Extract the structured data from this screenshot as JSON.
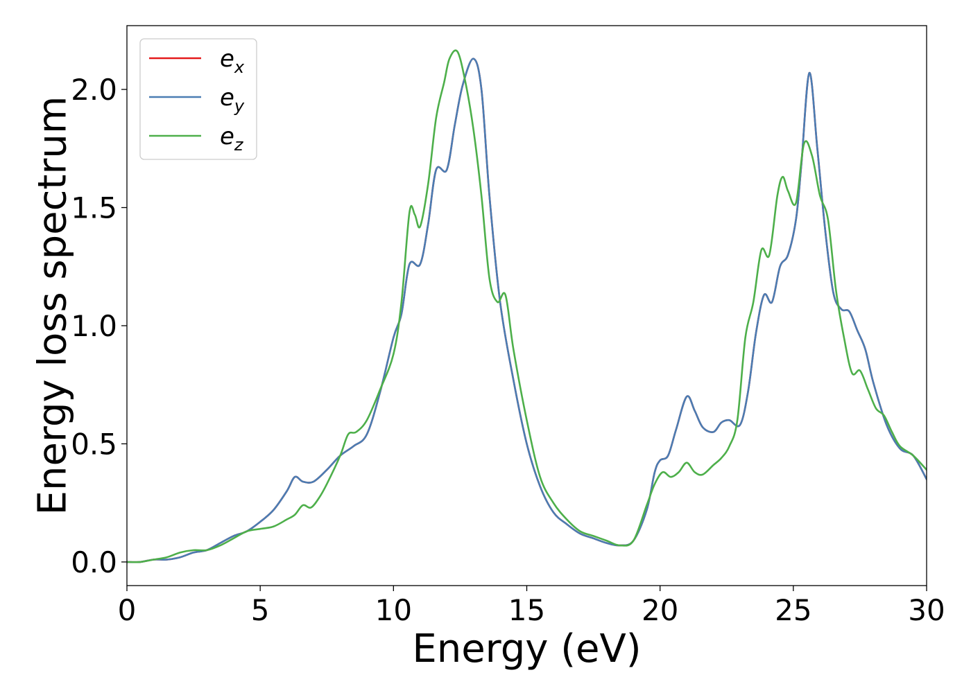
{
  "chart_data": {
    "type": "line",
    "title": "",
    "xlabel": "Energy (eV)",
    "ylabel": "Energy loss spectrum",
    "xlim": [
      0,
      30
    ],
    "ylim": [
      -0.1,
      2.27
    ],
    "xticks": [
      0,
      5,
      10,
      15,
      20,
      25,
      30
    ],
    "xtick_labels": [
      "0",
      "5",
      "10",
      "15",
      "20",
      "25",
      "30"
    ],
    "yticks": [
      0.0,
      0.5,
      1.0,
      1.5,
      2.0
    ],
    "ytick_labels": [
      "0.0",
      "0.5",
      "1.0",
      "1.5",
      "2.0"
    ],
    "grid": false,
    "legend_position": "top-left",
    "series": [
      {
        "name": "e_x",
        "legend_base": "e",
        "legend_sub": "x",
        "color": "#e41a1c",
        "x": [
          0,
          0.5,
          1,
          1.5,
          2,
          2.5,
          3,
          3.5,
          4,
          4.5,
          5,
          5.5,
          6,
          6.3,
          6.6,
          7,
          7.5,
          8,
          8.5,
          9,
          9.5,
          10,
          10.3,
          10.6,
          11,
          11.3,
          11.6,
          12,
          12.3,
          12.6,
          13,
          13.3,
          13.6,
          14,
          14.5,
          15,
          15.5,
          16,
          16.5,
          17,
          17.5,
          18,
          18.5,
          19,
          19.5,
          19.8,
          20,
          20.3,
          20.6,
          21,
          21.3,
          21.6,
          22,
          22.3,
          22.6,
          23,
          23.3,
          23.6,
          23.9,
          24.2,
          24.5,
          24.8,
          25.1,
          25.3,
          25.6,
          25.9,
          26.2,
          26.5,
          26.8,
          27.1,
          27.4,
          27.7,
          28,
          28.5,
          29,
          29.5,
          30
        ],
        "y": [
          0.0,
          0.0,
          0.01,
          0.01,
          0.02,
          0.04,
          0.05,
          0.08,
          0.11,
          0.13,
          0.17,
          0.22,
          0.3,
          0.36,
          0.34,
          0.34,
          0.39,
          0.45,
          0.49,
          0.54,
          0.72,
          0.95,
          1.05,
          1.26,
          1.26,
          1.43,
          1.66,
          1.66,
          1.85,
          2.02,
          2.13,
          2.0,
          1.55,
          1.1,
          0.77,
          0.5,
          0.32,
          0.21,
          0.16,
          0.12,
          0.1,
          0.08,
          0.07,
          0.09,
          0.22,
          0.38,
          0.43,
          0.45,
          0.56,
          0.7,
          0.64,
          0.57,
          0.55,
          0.59,
          0.6,
          0.58,
          0.72,
          0.97,
          1.13,
          1.1,
          1.25,
          1.3,
          1.45,
          1.68,
          2.07,
          1.75,
          1.4,
          1.14,
          1.07,
          1.06,
          0.98,
          0.9,
          0.76,
          0.58,
          0.48,
          0.45,
          0.35
        ]
      },
      {
        "name": "e_y",
        "legend_base": "e",
        "legend_sub": "y",
        "color": "#4a7db3",
        "x": [
          0,
          0.5,
          1,
          1.5,
          2,
          2.5,
          3,
          3.5,
          4,
          4.5,
          5,
          5.5,
          6,
          6.3,
          6.6,
          7,
          7.5,
          8,
          8.5,
          9,
          9.5,
          10,
          10.3,
          10.6,
          11,
          11.3,
          11.6,
          12,
          12.3,
          12.6,
          13,
          13.3,
          13.6,
          14,
          14.5,
          15,
          15.5,
          16,
          16.5,
          17,
          17.5,
          18,
          18.5,
          19,
          19.5,
          19.8,
          20,
          20.3,
          20.6,
          21,
          21.3,
          21.6,
          22,
          22.3,
          22.6,
          23,
          23.3,
          23.6,
          23.9,
          24.2,
          24.5,
          24.8,
          25.1,
          25.3,
          25.6,
          25.9,
          26.2,
          26.5,
          26.8,
          27.1,
          27.4,
          27.7,
          28,
          28.5,
          29,
          29.5,
          30
        ],
        "y": [
          0.0,
          0.0,
          0.01,
          0.01,
          0.02,
          0.04,
          0.05,
          0.08,
          0.11,
          0.13,
          0.17,
          0.22,
          0.3,
          0.36,
          0.34,
          0.34,
          0.39,
          0.45,
          0.49,
          0.54,
          0.72,
          0.95,
          1.05,
          1.26,
          1.26,
          1.43,
          1.66,
          1.66,
          1.85,
          2.02,
          2.13,
          2.0,
          1.55,
          1.1,
          0.77,
          0.5,
          0.32,
          0.21,
          0.16,
          0.12,
          0.1,
          0.08,
          0.07,
          0.09,
          0.22,
          0.38,
          0.43,
          0.45,
          0.56,
          0.7,
          0.64,
          0.57,
          0.55,
          0.59,
          0.6,
          0.58,
          0.72,
          0.97,
          1.13,
          1.1,
          1.25,
          1.3,
          1.45,
          1.68,
          2.07,
          1.75,
          1.4,
          1.14,
          1.07,
          1.06,
          0.98,
          0.9,
          0.76,
          0.58,
          0.48,
          0.45,
          0.35
        ]
      },
      {
        "name": "e_z",
        "legend_base": "e",
        "legend_sub": "z",
        "color": "#4daf4a",
        "x": [
          0,
          0.5,
          1,
          1.5,
          2,
          2.5,
          3,
          3.5,
          4,
          4.5,
          5,
          5.5,
          6,
          6.3,
          6.6,
          6.9,
          7.2,
          7.5,
          8,
          8.3,
          8.6,
          9,
          9.5,
          10,
          10.3,
          10.6,
          10.8,
          11,
          11.3,
          11.6,
          11.9,
          12.1,
          12.4,
          12.7,
          13,
          13.3,
          13.6,
          13.9,
          14.2,
          14.5,
          15,
          15.5,
          16,
          16.5,
          17,
          17.5,
          18,
          18.5,
          19,
          19.5,
          19.8,
          20.1,
          20.4,
          20.7,
          21,
          21.3,
          21.6,
          22,
          22.3,
          22.6,
          22.9,
          23.2,
          23.5,
          23.8,
          24.1,
          24.4,
          24.6,
          24.8,
          25.1,
          25.4,
          25.7,
          26,
          26.3,
          26.6,
          26.9,
          27.2,
          27.5,
          27.8,
          28.1,
          28.4,
          28.7,
          29,
          29.5,
          30
        ],
        "y": [
          0.0,
          0.0,
          0.01,
          0.02,
          0.04,
          0.05,
          0.05,
          0.07,
          0.1,
          0.13,
          0.14,
          0.15,
          0.18,
          0.2,
          0.24,
          0.23,
          0.27,
          0.33,
          0.45,
          0.54,
          0.55,
          0.6,
          0.73,
          0.88,
          1.1,
          1.48,
          1.47,
          1.42,
          1.6,
          1.88,
          2.03,
          2.13,
          2.16,
          2.03,
          1.83,
          1.55,
          1.2,
          1.1,
          1.13,
          0.9,
          0.6,
          0.36,
          0.25,
          0.18,
          0.13,
          0.11,
          0.09,
          0.07,
          0.09,
          0.24,
          0.33,
          0.38,
          0.36,
          0.38,
          0.42,
          0.38,
          0.37,
          0.41,
          0.44,
          0.49,
          0.6,
          0.95,
          1.1,
          1.32,
          1.3,
          1.55,
          1.63,
          1.57,
          1.52,
          1.77,
          1.72,
          1.55,
          1.45,
          1.15,
          0.95,
          0.8,
          0.81,
          0.73,
          0.65,
          0.62,
          0.55,
          0.49,
          0.45,
          0.39
        ]
      }
    ]
  }
}
